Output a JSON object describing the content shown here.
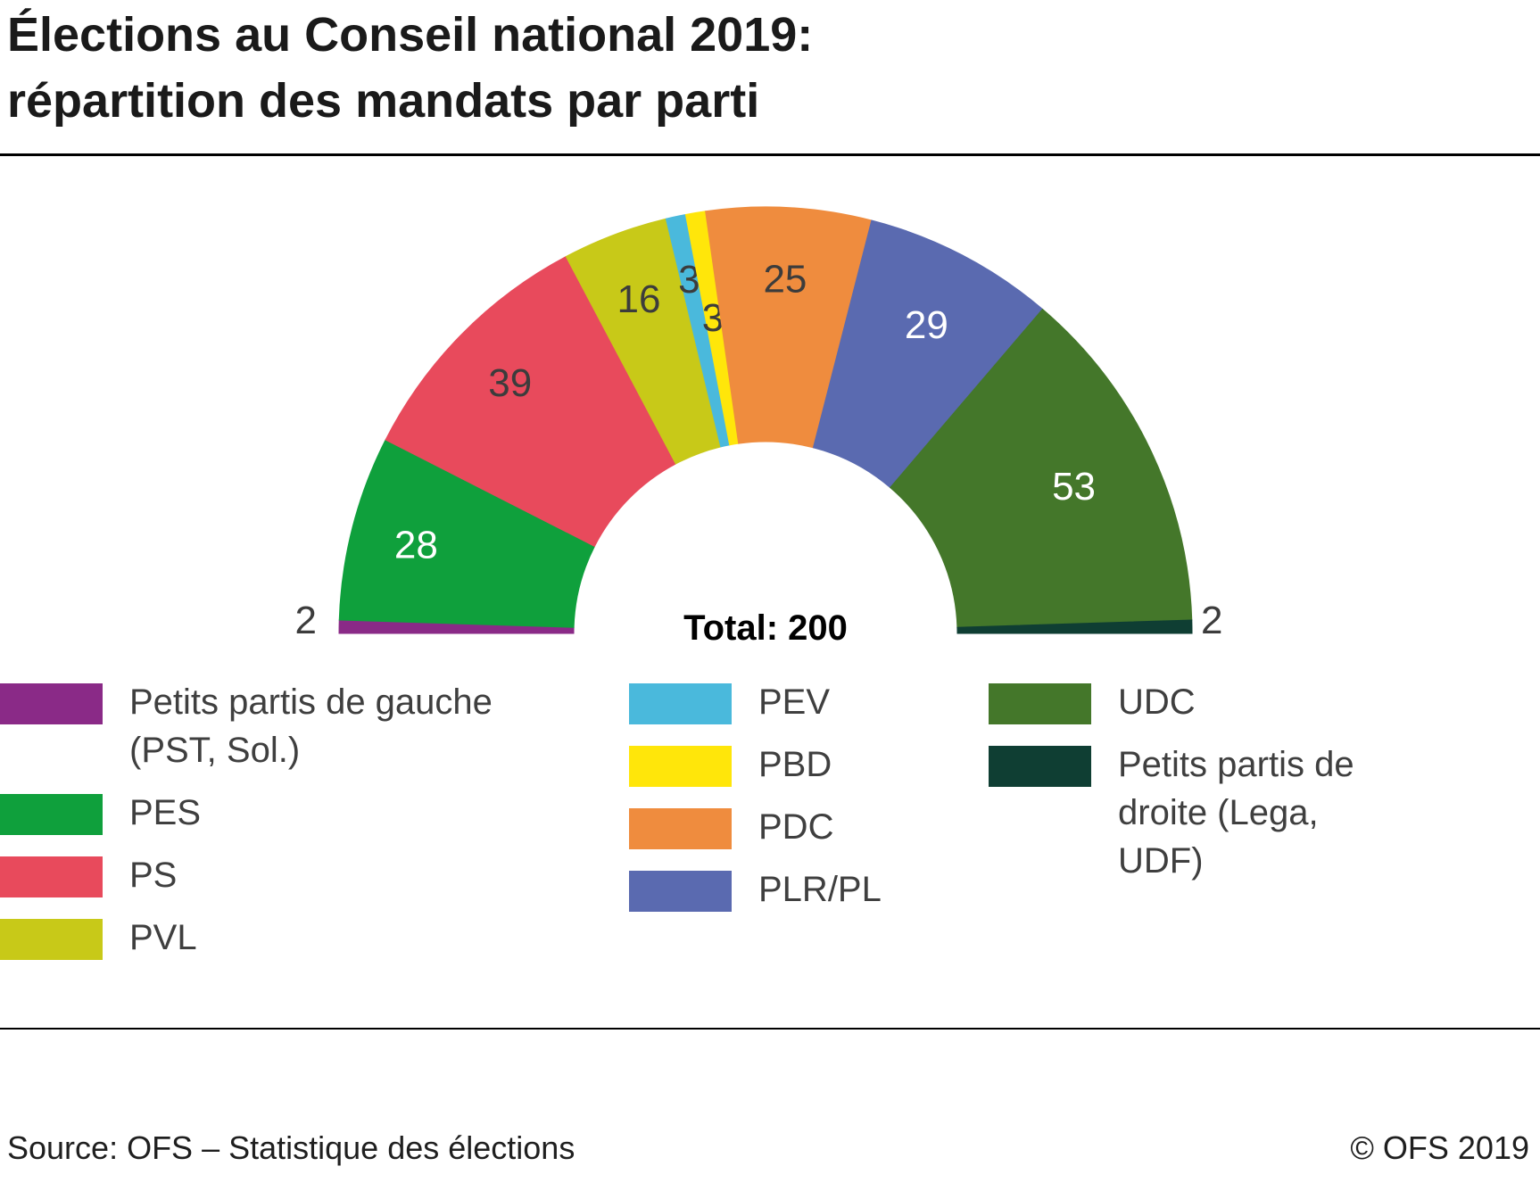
{
  "title": {
    "line1": "Élections au Conseil national 2019:",
    "line2": "répartition des mandats par parti"
  },
  "total_label": "Total: 200",
  "footer": {
    "source": "Source: OFS – Statistique des élections",
    "copyright": "© OFS 2019"
  },
  "chart_data": {
    "type": "pie",
    "variant": "hemicycle",
    "title": "Élections au Conseil national 2019: répartition des mandats par parti",
    "total": 200,
    "legend_position": "bottom",
    "series": [
      {
        "id": "petits-partis-gauche",
        "name": "Petits partis de gauche (PST, Sol.)",
        "value": 2,
        "color": "#8a2a87",
        "label_color": "#3c3c3c",
        "label_placement": "outside-left"
      },
      {
        "id": "pes",
        "name": "PES",
        "value": 28,
        "color": "#0fa03c",
        "label_color": "#ffffff",
        "label_radius": 0.72
      },
      {
        "id": "ps",
        "name": "PS",
        "value": 39,
        "color": "#e84a5c",
        "label_color": "#3c3c3c",
        "label_radius": 0.71
      },
      {
        "id": "pvl",
        "name": "PVL",
        "value": 16,
        "color": "#c8c918",
        "label_color": "#3c3c3c",
        "label_radius": 0.71
      },
      {
        "id": "pev",
        "name": "PEV",
        "value": 3,
        "color": "#4ab9dc",
        "label_color": "#3c3c3c",
        "label_radius": 0.73
      },
      {
        "id": "pbd",
        "name": "PBD",
        "value": 3,
        "color": "#ffe60a",
        "label_color": "#3c3c3c",
        "label_radius": 0.55
      },
      {
        "id": "pdc",
        "name": "PDC",
        "value": 25,
        "color": "#ef8c3e",
        "label_color": "#3c3c3c",
        "label_radius": 0.7
      },
      {
        "id": "plr-pl",
        "name": "PLR/PL",
        "value": 29,
        "color": "#5a6ab0",
        "label_color": "#ffffff",
        "label_radius": 0.67
      },
      {
        "id": "udc",
        "name": "UDC",
        "value": 53,
        "color": "#44772a",
        "label_color": "#ffffff",
        "label_radius": 0.64
      },
      {
        "id": "petits-partis-droite",
        "name": "Petits partis de droite (Lega, UDF)",
        "value": 2,
        "color": "#0f3e33",
        "label_color": "#3c3c3c",
        "label_placement": "outside-right"
      }
    ],
    "legend_columns": [
      [
        0,
        1,
        2,
        3
      ],
      [
        4,
        5,
        6,
        7
      ],
      [
        8,
        9
      ]
    ]
  }
}
